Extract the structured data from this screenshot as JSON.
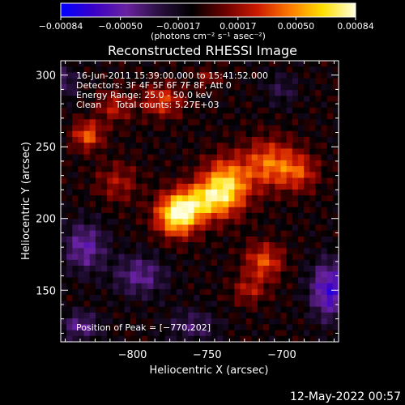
{
  "chart_data": {
    "type": "heatmap",
    "title": "Reconstructed RHESSI Image",
    "xlabel": "Heliocentric X (arcsec)",
    "ylabel": "Heliocentric Y (arcsec)",
    "xlim": [
      -848,
      -662
    ],
    "ylim": [
      114,
      310
    ],
    "xticks": [
      -800,
      -750,
      -700
    ],
    "xtick_labels": [
      "−800",
      "−750",
      "−700"
    ],
    "yticks": [
      150,
      200,
      250,
      300
    ],
    "ytick_labels": [
      "150",
      "200",
      "250",
      "300"
    ],
    "colorbar": {
      "range": [
        -0.00084,
        0.00084
      ],
      "ticks": [
        -0.00084,
        -0.0005,
        -0.00017,
        0.00017,
        0.0005,
        0.00084
      ],
      "tick_labels": [
        "−0.00084",
        "−0.00050",
        "−0.00017",
        "0.00017",
        "0.00050",
        "0.00084"
      ],
      "units": "(photons cm⁻² s⁻¹ asec⁻²)"
    },
    "info": [
      "16-Jun-2011 15:39:00.000 to 15:41:52.000",
      "Detectors: 3F 4F 5F 6F 7F 8F, Att 0",
      "Energy Range: 25.0 - 50.0 keV",
      "Clean     Total counts: 5.27E+03"
    ],
    "peak_label": "Position of Peak = [−770,202]",
    "peak": {
      "x": -770,
      "y": 202,
      "value": 0.00084
    },
    "sources": [
      {
        "x": -770,
        "y": 202,
        "sx": 10,
        "sy": 10,
        "amp": 0.00084
      },
      {
        "x": -738,
        "y": 222,
        "sx": 11,
        "sy": 13,
        "amp": 0.00074
      },
      {
        "x": -755,
        "y": 212,
        "sx": 12,
        "sy": 9,
        "amp": 0.0005
      },
      {
        "x": -708,
        "y": 238,
        "sx": 13,
        "sy": 12,
        "amp": 0.0005
      },
      {
        "x": -688,
        "y": 232,
        "sx": 9,
        "sy": 9,
        "amp": 0.00032
      },
      {
        "x": -830,
        "y": 258,
        "sx": 7,
        "sy": 7,
        "amp": 0.00048
      },
      {
        "x": -812,
        "y": 278,
        "sx": 8,
        "sy": 8,
        "amp": 0.0003
      },
      {
        "x": -780,
        "y": 282,
        "sx": 10,
        "sy": 8,
        "amp": 0.0004
      },
      {
        "x": -712,
        "y": 170,
        "sx": 9,
        "sy": 9,
        "amp": 0.00044
      },
      {
        "x": -722,
        "y": 150,
        "sx": 8,
        "sy": 7,
        "amp": 0.00028
      },
      {
        "x": -750,
        "y": 298,
        "sx": 6,
        "sy": 5,
        "amp": 0.00022
      },
      {
        "x": -810,
        "y": 225,
        "sx": 10,
        "sy": 10,
        "amp": 0.00026
      },
      {
        "x": -795,
        "y": 160,
        "sx": 12,
        "sy": 10,
        "amp": -0.00035
      },
      {
        "x": -832,
        "y": 180,
        "sx": 10,
        "sy": 12,
        "amp": -0.0004
      },
      {
        "x": -668,
        "y": 150,
        "sx": 9,
        "sy": 14,
        "amp": -0.00055
      },
      {
        "x": -835,
        "y": 125,
        "sx": 9,
        "sy": 7,
        "amp": -0.00035
      },
      {
        "x": -760,
        "y": 125,
        "sx": 12,
        "sy": 8,
        "amp": -0.00025
      },
      {
        "x": -845,
        "y": 295,
        "sx": 6,
        "sy": 8,
        "amp": -0.00025
      },
      {
        "x": -700,
        "y": 290,
        "sx": 8,
        "sy": 8,
        "amp": -0.00018
      }
    ]
  },
  "footer": {
    "date_stamp": "12-May-2022 00:57"
  },
  "colors": {
    "background": "#000000",
    "foreground": "#ffffff",
    "colormap": [
      "#0000ff",
      "#3a00c8",
      "#6a22a0",
      "#2a1040",
      "#000000",
      "#6a0000",
      "#cc1a00",
      "#ff7a00",
      "#ffdf00",
      "#ffffe0"
    ]
  }
}
